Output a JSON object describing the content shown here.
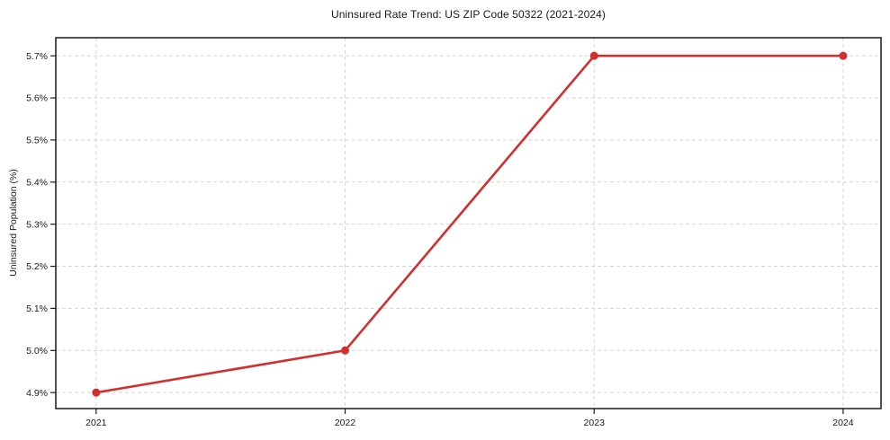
{
  "chart_data": {
    "type": "line",
    "title": "Uninsured Rate Trend: US ZIP Code 50322 (2021-2024)",
    "xlabel": "",
    "ylabel": "Uninsured Population (%)",
    "x": [
      2021,
      2022,
      2023,
      2024
    ],
    "values": [
      4.9,
      5.0,
      5.7,
      5.7
    ],
    "x_tick_labels": [
      "2021",
      "2022",
      "2023",
      "2024"
    ],
    "y_ticks": [
      4.9,
      5.0,
      5.1,
      5.2,
      5.3,
      5.4,
      5.5,
      5.6,
      5.7
    ],
    "y_tick_labels": [
      "4.9%",
      "5.0%",
      "5.1%",
      "5.2%",
      "5.3%",
      "5.4%",
      "5.5%",
      "5.6%",
      "5.7%"
    ],
    "xlim": [
      2020.838,
      2024.152
    ],
    "ylim": [
      4.862,
      5.743
    ],
    "grid": true,
    "grid_style": "dashed",
    "legend": null,
    "line_color": "#d32f2f",
    "marker": "circle",
    "marker_radius": 4.5,
    "line_width": 2.6
  },
  "colors": {
    "background": "#ffffff",
    "grid": "#d4d4d4",
    "spine": "#1a1a1a",
    "text": "#1a1a1a",
    "series": "#d32f2f"
  }
}
